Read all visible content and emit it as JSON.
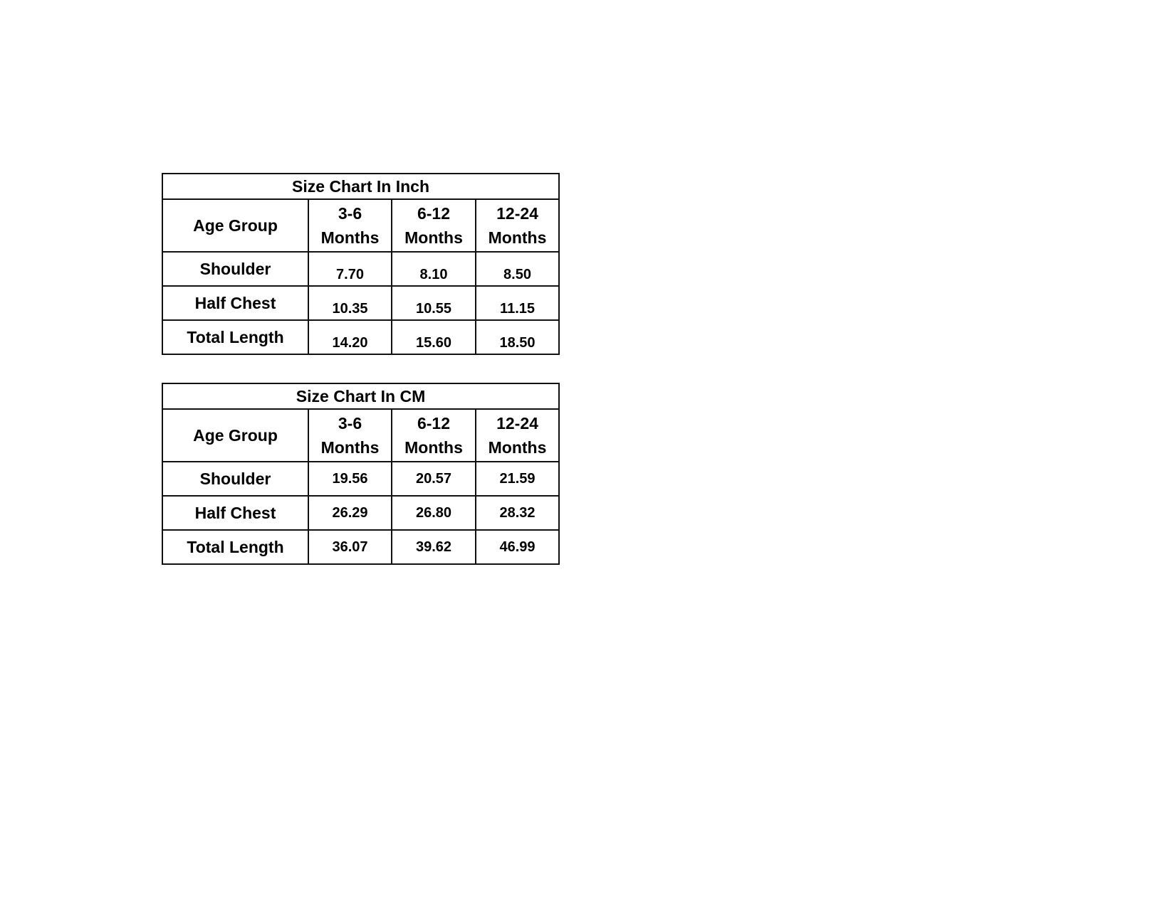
{
  "tables": [
    {
      "title": "Size Chart In Inch",
      "header": {
        "label": "Age Group",
        "columns": [
          "3-6 Months",
          "6-12 Months",
          "12-24 Months"
        ]
      },
      "rows": [
        {
          "label": "Shoulder",
          "values": [
            "7.70",
            "8.10",
            "8.50"
          ]
        },
        {
          "label": "Half Chest",
          "values": [
            "10.35",
            "10.55",
            "11.15"
          ]
        },
        {
          "label": "Total Length",
          "values": [
            "14.20",
            "15.60",
            "18.50"
          ]
        }
      ]
    },
    {
      "title": "Size Chart In CM",
      "header": {
        "label": "Age Group",
        "columns": [
          "3-6 Months",
          "6-12 Months",
          "12-24 Months"
        ]
      },
      "rows": [
        {
          "label": "Shoulder",
          "values": [
            "19.56",
            "20.57",
            "21.59"
          ]
        },
        {
          "label": "Half Chest",
          "values": [
            "26.29",
            "26.80",
            "28.32"
          ]
        },
        {
          "label": "Total Length",
          "values": [
            "36.07",
            "39.62",
            "46.99"
          ]
        }
      ]
    }
  ]
}
